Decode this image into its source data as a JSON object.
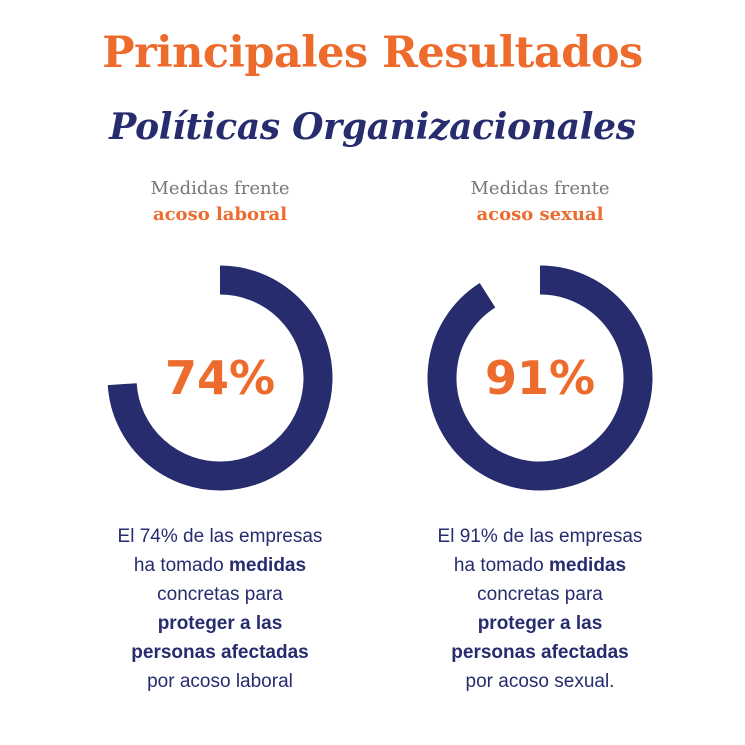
{
  "header": {
    "title": "Principales Resultados",
    "subtitle": "Políticas Organizacionales"
  },
  "colors": {
    "accent": "#ec6b2d",
    "navy": "#262c6e",
    "gray": "#777777"
  },
  "chart_data": [
    {
      "type": "pie",
      "style": "donut",
      "heading_line1": "Medidas frente",
      "heading_line2": "acoso laboral",
      "value": 74,
      "value_label": "74%",
      "description": {
        "line1": "El 74% de las empresas",
        "line2_pre": "ha tomado ",
        "line2_bold": "medidas",
        "line3": "concretas para",
        "line4_bold": "proteger a las",
        "line5_bold": "personas afectadas",
        "line6": "por acoso laboral"
      }
    },
    {
      "type": "pie",
      "style": "donut",
      "heading_line1": "Medidas frente",
      "heading_line2": "acoso sexual",
      "value": 91,
      "value_label": "91%",
      "description": {
        "line1": "El 91% de las empresas",
        "line2_pre": "ha tomado ",
        "line2_bold": "medidas",
        "line3": "concretas para",
        "line4_bold": "proteger a las",
        "line5_bold": "personas afectadas",
        "line6": "por acoso sexual."
      }
    }
  ]
}
